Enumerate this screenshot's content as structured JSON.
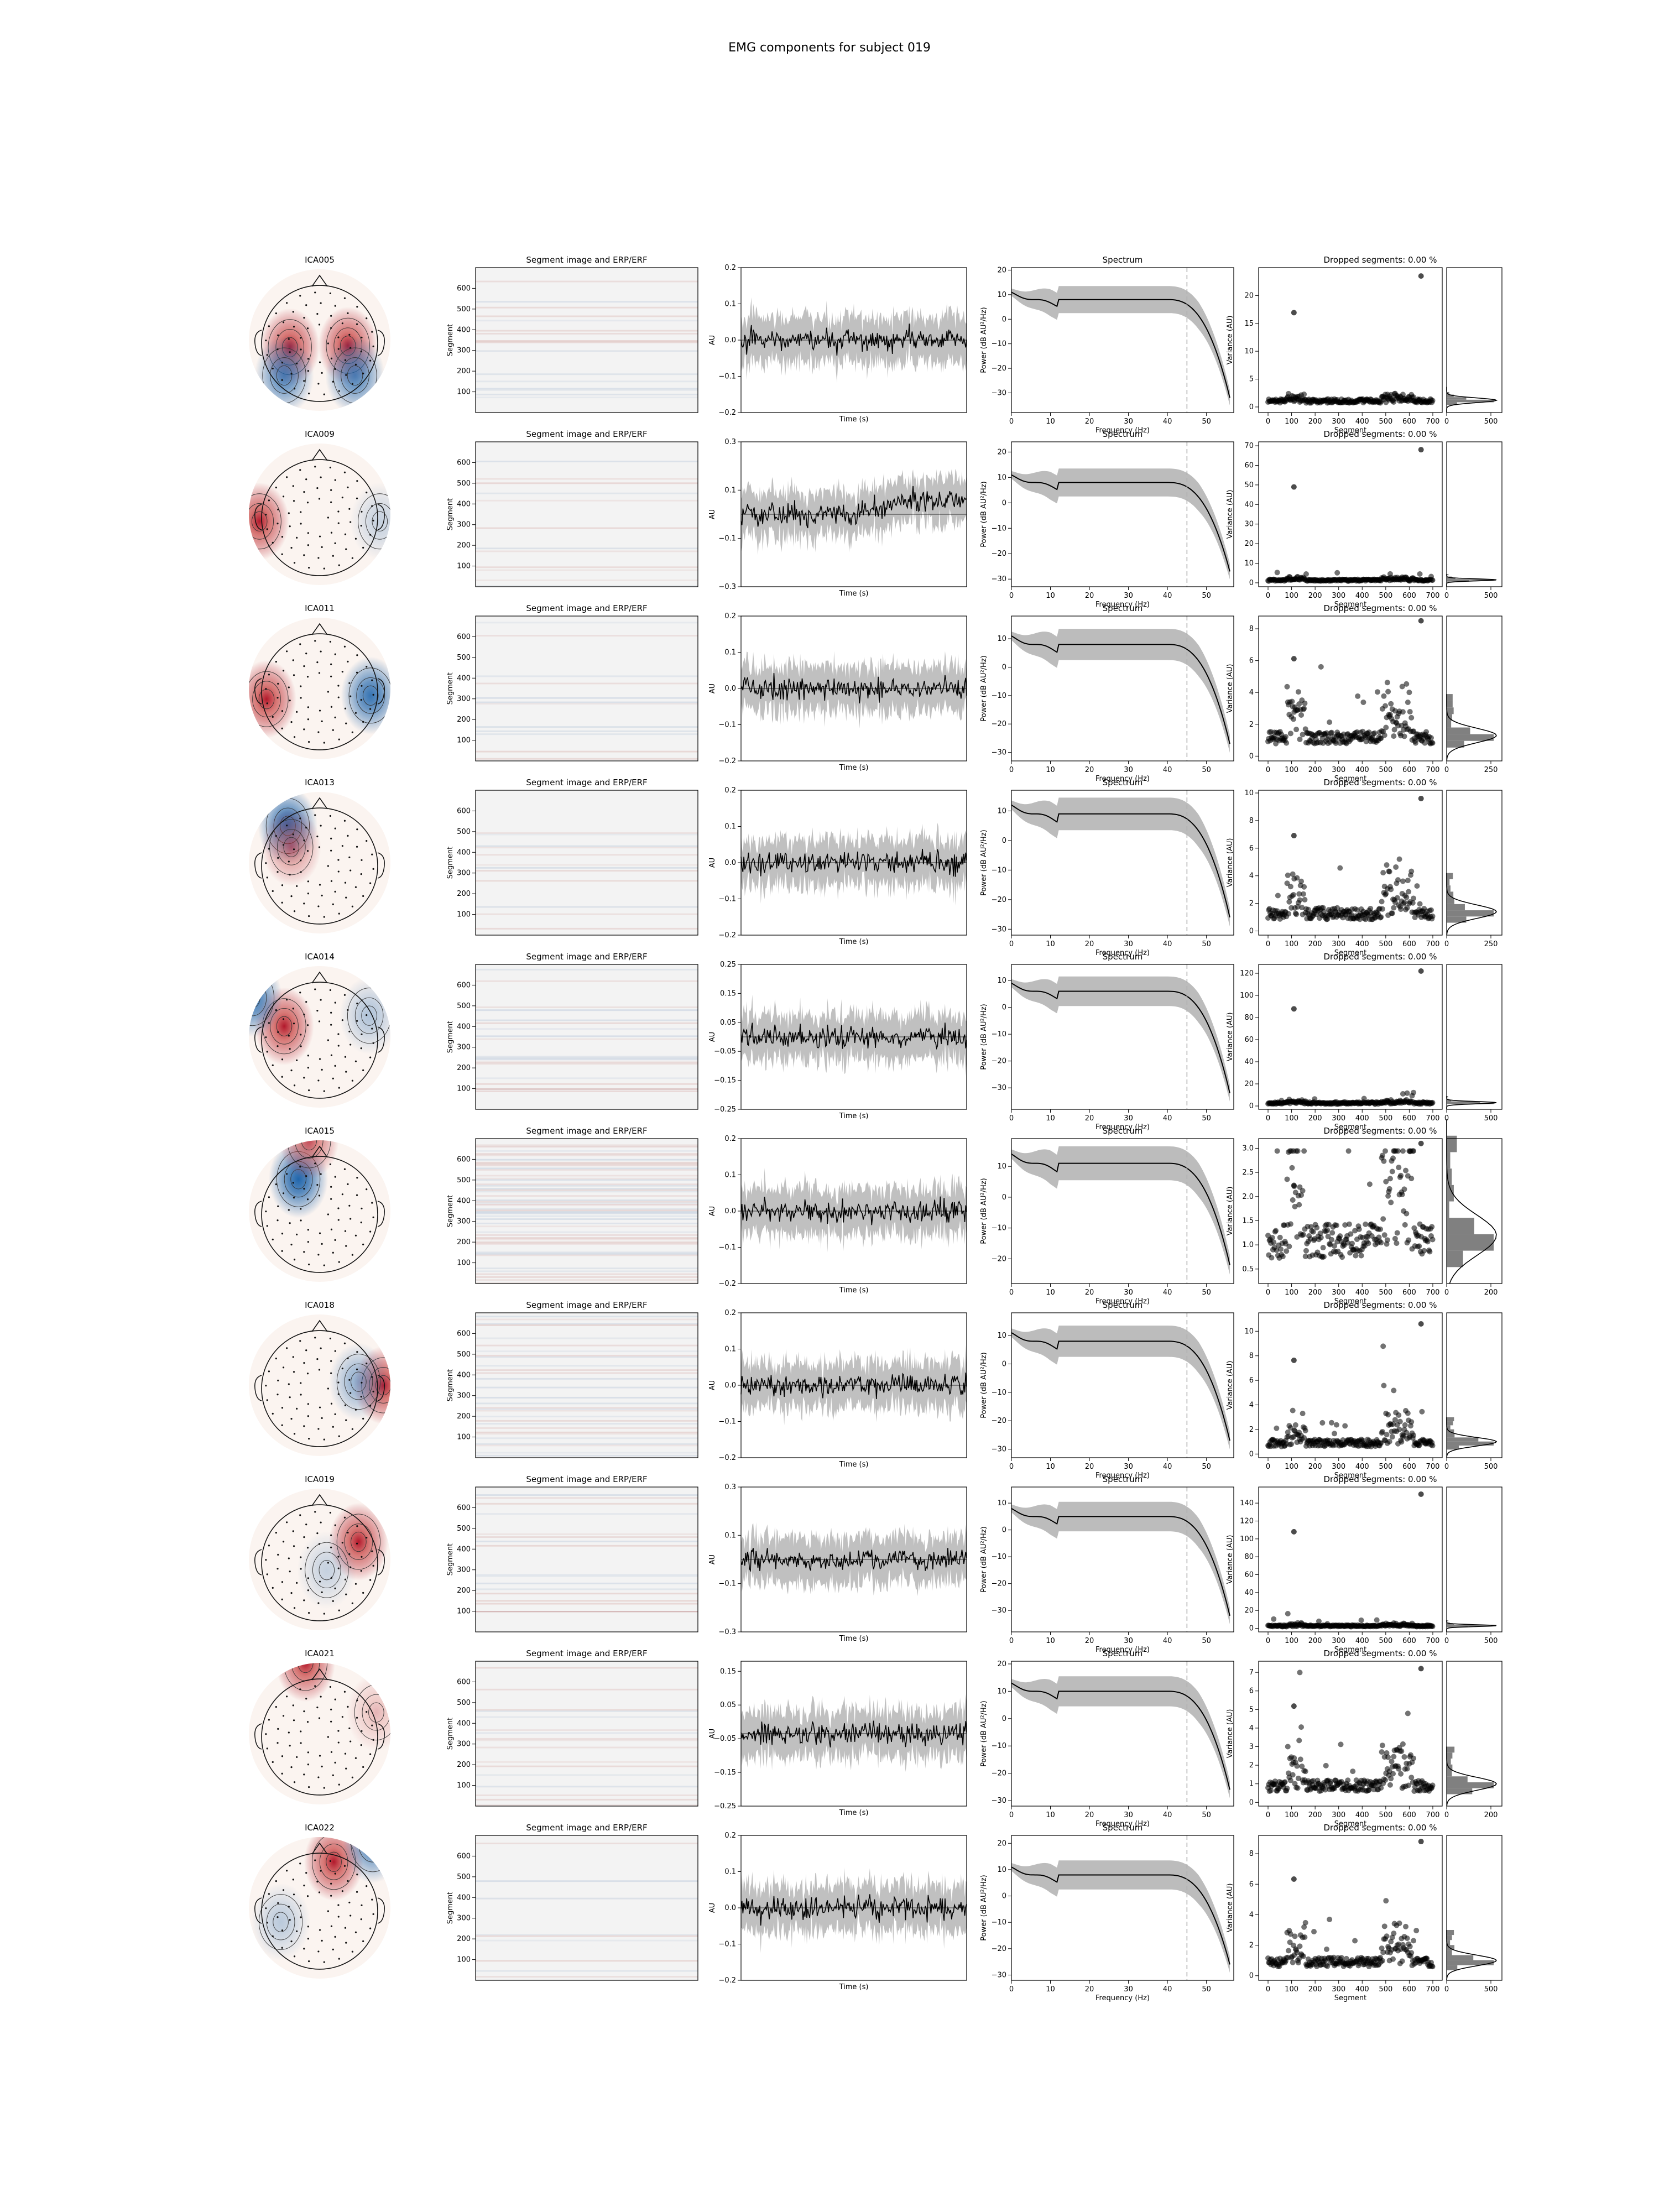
{
  "title": "EMG components for subject 019",
  "panel_titles": {
    "image": "Segment image and ERP/ERF",
    "spectrum": "Spectrum",
    "dropped_prefix": "Dropped segments: ",
    "dropped_value": "0.00 %"
  },
  "axis_labels": {
    "segment": "Segment",
    "au": "AU",
    "time": "Time (s)",
    "power": "Power (dB AU²/Hz)",
    "frequency": "Frequency (Hz)",
    "variance": "Variance (AU)"
  },
  "shared_ticks": {
    "image_y": [
      100,
      200,
      300,
      400,
      500,
      600
    ],
    "spectrum_x": [
      0,
      10,
      20,
      30,
      40,
      50
    ],
    "scatter_x": [
      0,
      100,
      200,
      300,
      400,
      500,
      600,
      700
    ]
  },
  "colors": {
    "topo_red": "#b2182b",
    "topo_blue": "#2166ac",
    "band": "#b0b0b0",
    "line": "#000000",
    "dash": "#b0b0b0"
  },
  "chart_data": {
    "type": "ica_component_report",
    "n_segments": 700,
    "spectrum_xlim": [
      0,
      57
    ],
    "spectrum_vline_hz": 45,
    "components": [
      {
        "name": "ICA005",
        "erp_ylim": [
          -0.2,
          0.2
        ],
        "erp_ticks": [
          -0.2,
          -0.1,
          0.0,
          0.1,
          0.2
        ],
        "spectrum_ylim": [
          -38,
          21
        ],
        "spectrum_ticks": [
          -30,
          -20,
          -10,
          0,
          10,
          20
        ],
        "spectrum_plateau": 8,
        "var_ylim": [
          -1,
          25
        ],
        "var_ticks": [
          0,
          5,
          10,
          15,
          20
        ],
        "var_base": 1.2,
        "var_outlier": 23.5,
        "hist_ticks": [
          0,
          500
        ],
        "topo": [
          {
            "cx": -0.42,
            "cy": 0.1,
            "amp": 1
          },
          {
            "cx": 0.4,
            "cy": 0.08,
            "amp": 1
          },
          {
            "cx": -0.5,
            "cy": 0.5,
            "amp": -0.8
          },
          {
            "cx": 0.5,
            "cy": 0.5,
            "amp": -0.8
          }
        ]
      },
      {
        "name": "ICA009",
        "erp_ylim": [
          -0.3,
          0.3
        ],
        "erp_ticks": [
          -0.3,
          -0.1,
          0.1,
          0.3
        ],
        "spectrum_ylim": [
          -33,
          24
        ],
        "spectrum_ticks": [
          -30,
          -20,
          -10,
          0,
          10,
          20
        ],
        "spectrum_plateau": 8,
        "var_ylim": [
          -2,
          72
        ],
        "var_ticks": [
          0,
          10,
          20,
          30,
          40,
          50,
          60,
          70
        ],
        "var_base": 1.5,
        "var_outlier": 68,
        "hist_ticks": [
          0,
          500
        ],
        "topo": [
          {
            "cx": -0.85,
            "cy": 0.1,
            "amp": 1
          },
          {
            "cx": 0.85,
            "cy": 0.1,
            "amp": -0.25
          }
        ]
      },
      {
        "name": "ICA011",
        "erp_ylim": [
          -0.2,
          0.2
        ],
        "erp_ticks": [
          -0.2,
          -0.1,
          0.0,
          0.1,
          0.2
        ],
        "spectrum_ylim": [
          -33,
          18
        ],
        "spectrum_ticks": [
          -30,
          -20,
          -10,
          0,
          10
        ],
        "spectrum_plateau": 8,
        "var_ylim": [
          -0.3,
          8.8
        ],
        "var_ticks": [
          0,
          2,
          4,
          6,
          8
        ],
        "var_base": 1.3,
        "var_outlier": 8.5,
        "hist_ticks": [
          0,
          250
        ],
        "topo": [
          {
            "cx": -0.75,
            "cy": 0.15,
            "amp": 1
          },
          {
            "cx": 0.72,
            "cy": 0.1,
            "amp": -0.9
          }
        ]
      },
      {
        "name": "ICA013",
        "erp_ylim": [
          -0.2,
          0.2
        ],
        "erp_ticks": [
          -0.2,
          -0.1,
          0.0,
          0.1,
          0.2
        ],
        "spectrum_ylim": [
          -32,
          17
        ],
        "spectrum_ticks": [
          -30,
          -20,
          -10,
          0,
          10
        ],
        "spectrum_plateau": 9,
        "var_ylim": [
          -0.3,
          10.2
        ],
        "var_ticks": [
          0,
          2,
          4,
          6,
          8,
          10
        ],
        "var_base": 1.4,
        "var_outlier": 9.6,
        "hist_ticks": [
          0,
          250
        ],
        "topo": [
          {
            "cx": -0.45,
            "cy": -0.52,
            "amp": -1
          },
          {
            "cx": -0.4,
            "cy": -0.22,
            "amp": 0.6
          }
        ]
      },
      {
        "name": "ICA014",
        "erp_ylim": [
          -0.25,
          0.25
        ],
        "erp_ticks": [
          -0.25,
          -0.15,
          -0.05,
          0.05,
          0.15,
          0.25
        ],
        "spectrum_ylim": [
          -38,
          16
        ],
        "spectrum_ticks": [
          -30,
          -20,
          -10,
          0,
          10
        ],
        "spectrum_plateau": 6,
        "var_ylim": [
          -3,
          128
        ],
        "var_ticks": [
          0,
          20,
          40,
          60,
          80,
          100,
          120
        ],
        "var_base": 3,
        "var_outlier": 122,
        "hist_ticks": [
          0,
          500
        ],
        "topo": [
          {
            "cx": -0.5,
            "cy": -0.15,
            "amp": 1
          },
          {
            "cx": -0.95,
            "cy": -0.55,
            "amp": -0.9
          },
          {
            "cx": 0.7,
            "cy": -0.3,
            "amp": -0.35
          }
        ]
      },
      {
        "name": "ICA015",
        "erp_ylim": [
          -0.2,
          0.2
        ],
        "erp_ticks": [
          -0.2,
          -0.1,
          0.0,
          0.1,
          0.2
        ],
        "spectrum_ylim": [
          -28,
          19
        ],
        "spectrum_ticks": [
          -20,
          -10,
          0,
          10
        ],
        "spectrum_plateau": 11,
        "var_ylim": [
          0.2,
          3.2
        ],
        "var_ticks": [
          0.5,
          1.0,
          1.5,
          2.0,
          2.5,
          3.0
        ],
        "var_base": 1.2,
        "var_outlier": 3.1,
        "hist_ticks": [
          0,
          200
        ],
        "topo": [
          {
            "cx": -0.3,
            "cy": -0.45,
            "amp": -1
          },
          {
            "cx": -0.15,
            "cy": -1.0,
            "amp": 0.8
          }
        ]
      },
      {
        "name": "ICA018",
        "erp_ylim": [
          -0.2,
          0.2
        ],
        "erp_ticks": [
          -0.2,
          -0.1,
          0.0,
          0.1,
          0.2
        ],
        "spectrum_ylim": [
          -33,
          18
        ],
        "spectrum_ticks": [
          -30,
          -20,
          -10,
          0,
          10
        ],
        "spectrum_plateau": 8,
        "var_ylim": [
          -0.3,
          11.5
        ],
        "var_ticks": [
          0,
          2,
          4,
          6,
          8,
          10
        ],
        "var_base": 1.0,
        "var_outlier": 10.6,
        "hist_ticks": [
          0,
          500
        ],
        "topo": [
          {
            "cx": 0.9,
            "cy": 0.0,
            "amp": 1
          },
          {
            "cx": 0.55,
            "cy": -0.05,
            "amp": -0.5
          }
        ]
      },
      {
        "name": "ICA019",
        "erp_ylim": [
          -0.3,
          0.3
        ],
        "erp_ticks": [
          -0.3,
          -0.1,
          0.1,
          0.3
        ],
        "spectrum_ylim": [
          -38,
          16
        ],
        "spectrum_ticks": [
          -30,
          -20,
          -10,
          0,
          10
        ],
        "spectrum_plateau": 5,
        "var_ylim": [
          -4,
          158
        ],
        "var_ticks": [
          0,
          20,
          40,
          60,
          80,
          100,
          120,
          140
        ],
        "var_base": 3,
        "var_outlier": 150,
        "hist_ticks": [
          0,
          500
        ],
        "topo": [
          {
            "cx": 0.55,
            "cy": -0.25,
            "amp": 1
          },
          {
            "cx": 0.1,
            "cy": 0.15,
            "amp": -0.25
          }
        ]
      },
      {
        "name": "ICA021",
        "erp_ylim": [
          -0.25,
          0.18
        ],
        "erp_ticks": [
          -0.25,
          -0.15,
          -0.05,
          0.05,
          0.15
        ],
        "spectrum_ylim": [
          -32,
          21
        ],
        "spectrum_ticks": [
          -30,
          -20,
          -10,
          0,
          10,
          20
        ],
        "spectrum_plateau": 10,
        "var_ylim": [
          -0.2,
          7.6
        ],
        "var_ticks": [
          0,
          1,
          2,
          3,
          4,
          5,
          6,
          7
        ],
        "var_base": 1.0,
        "var_outlier": 7.2,
        "hist_ticks": [
          0,
          200
        ],
        "topo": [
          {
            "cx": -0.2,
            "cy": -1.0,
            "amp": 1
          },
          {
            "cx": 0.8,
            "cy": -0.3,
            "amp": 0.3
          }
        ]
      },
      {
        "name": "ICA022",
        "erp_ylim": [
          -0.2,
          0.2
        ],
        "erp_ticks": [
          -0.2,
          -0.1,
          0.0,
          0.1,
          0.2
        ],
        "spectrum_ylim": [
          -32,
          23
        ],
        "spectrum_ticks": [
          -30,
          -20,
          -10,
          0,
          10,
          20
        ],
        "spectrum_plateau": 8,
        "var_ylim": [
          -0.3,
          9.2
        ],
        "var_ticks": [
          0,
          2,
          4,
          6,
          8
        ],
        "var_base": 1.0,
        "var_outlier": 8.8,
        "hist_ticks": [
          0,
          500
        ],
        "topo": [
          {
            "cx": 0.2,
            "cy": -0.65,
            "amp": 1
          },
          {
            "cx": 0.75,
            "cy": -0.9,
            "amp": -0.8
          },
          {
            "cx": -0.55,
            "cy": 0.2,
            "amp": -0.3
          }
        ]
      }
    ]
  }
}
